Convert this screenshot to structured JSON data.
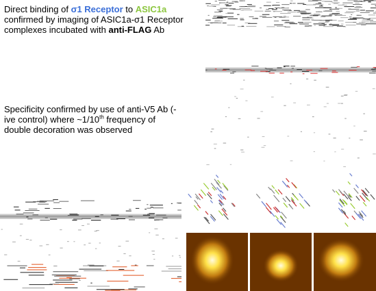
{
  "paragraphs": [
    {
      "segments": [
        "Direct binding of ",
        "σ1 Receptor",
        " to ",
        "ASIC1a",
        " confirmed by imaging of ASIC1a-σ1 Receptor complexes incubated with ",
        "anti-FLAG",
        " Ab"
      ]
    },
    {
      "segments": [
        "Specificity confirmed by use of anti-V5 Ab (-ive control) where ~1/10",
        "th",
        " frequency of double decoration was observed"
      ]
    }
  ]
}
